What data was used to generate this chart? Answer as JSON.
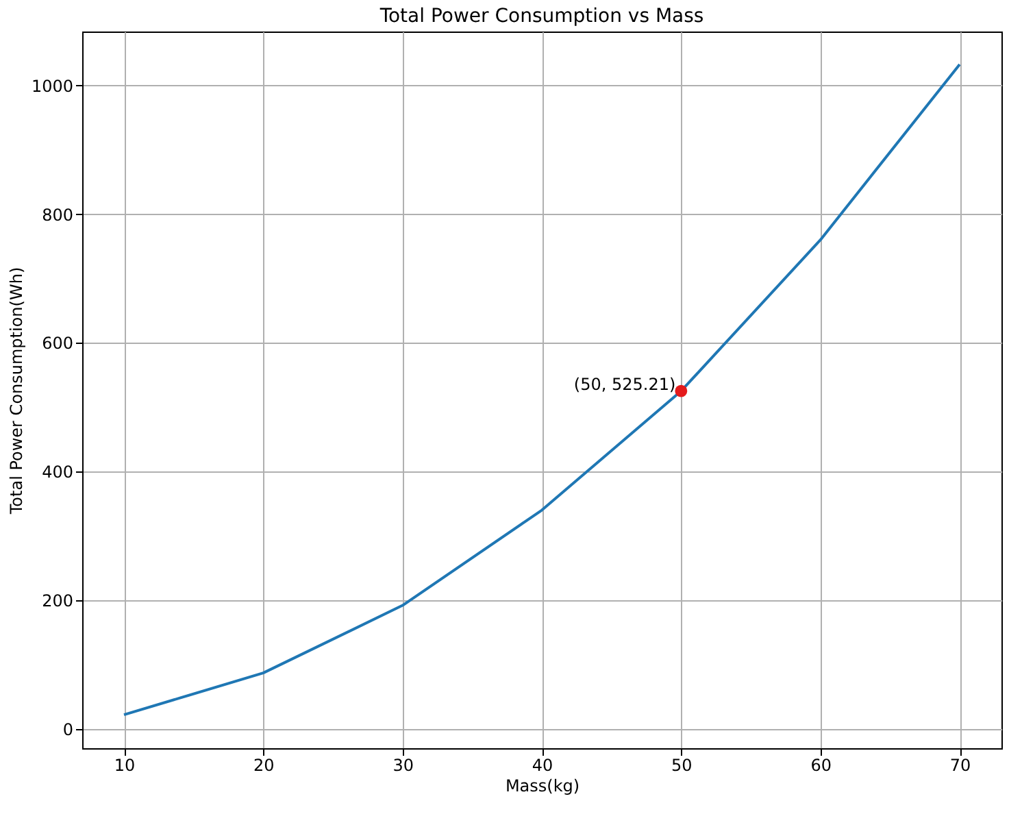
{
  "chart_data": {
    "type": "line",
    "title": "Total Power Consumption vs Mass",
    "xlabel": "Mass(kg)",
    "ylabel": "Total Power Consumption(Wh)",
    "x": [
      10,
      20,
      30,
      40,
      50,
      60,
      70
    ],
    "series": [
      {
        "color": "#1f77b4",
        "values": [
          22,
          87,
          192,
          340,
          525.21,
          760,
          1033
        ]
      },
      {
        "type": "scatter",
        "marker": "circle",
        "color": "#e41a1c",
        "x": [
          50
        ],
        "values": [
          525.21
        ]
      }
    ],
    "annotations": [
      {
        "text": "(50, 525.21)",
        "x": 50,
        "y": 525.21
      }
    ],
    "xlim": [
      7,
      73
    ],
    "xticks": [
      10,
      20,
      30,
      40,
      50,
      60,
      70
    ],
    "ylim": [
      -30,
      1084
    ],
    "yticks": [
      0,
      200,
      400,
      600,
      800,
      1000
    ],
    "grid": true,
    "line_style": "solid"
  }
}
